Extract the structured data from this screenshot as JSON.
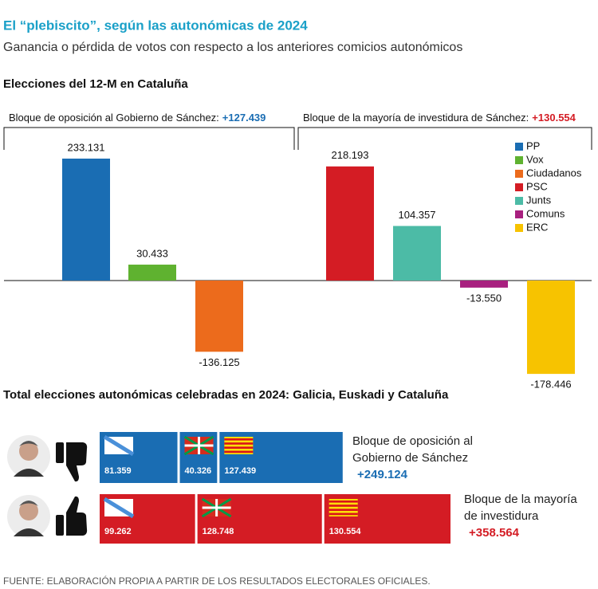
{
  "header": {
    "title": "El “plebiscito”, según las autonómicas de 2024",
    "subtitle": "Ganancia o pérdida de votos con respecto a los anteriores comicios autonómicos"
  },
  "chart_data": [
    {
      "type": "bar",
      "title": "Elecciones del 12-M en Cataluña",
      "blocs": [
        {
          "name": "Bloque de oposición al Gobierno de Sánchez:",
          "color": "#1a6db3",
          "total": {
            "value": 127439,
            "label": "+127.439"
          },
          "series": [
            {
              "name": "PP",
              "color": "#1a6db3",
              "values": [
                233131
              ],
              "value_labels": [
                "233.131"
              ]
            },
            {
              "name": "Vox",
              "color": "#5fb230",
              "values": [
                30433
              ],
              "value_labels": [
                "30.433"
              ]
            },
            {
              "name": "Ciudadanos",
              "color": "#ec6b1c",
              "values": [
                -136125
              ],
              "value_labels": [
                "-136.125"
              ]
            }
          ]
        },
        {
          "name": "Bloque de la mayoría de investidura de Sánchez:",
          "color": "#d41c24",
          "total": {
            "value": 130554,
            "label": "+130.554"
          },
          "series": [
            {
              "name": "PSC",
              "color": "#d41c24",
              "values": [
                218193
              ],
              "value_labels": [
                "218.193"
              ]
            },
            {
              "name": "Junts",
              "color": "#4cbba6",
              "values": [
                104357
              ],
              "value_labels": [
                "104.357"
              ]
            },
            {
              "name": "Comuns",
              "color": "#a8207f",
              "values": [
                -13550
              ],
              "value_labels": [
                "-13.550"
              ]
            },
            {
              "name": "ERC",
              "color": "#f7c300",
              "values": [
                -178446
              ],
              "value_labels": [
                "-178.446"
              ]
            }
          ]
        }
      ]
    },
    {
      "type": "stacked-bar",
      "title": "Total elecciones autonómicas celebradas en 2024: Galicia, Euskadi y Cataluña",
      "rows": [
        {
          "label": "Bloque de oposición al Gobierno de Sánchez",
          "color": "#1a6db3",
          "total": {
            "value": 249124,
            "label": "+249.124"
          },
          "values": [
            81359,
            40326,
            127439
          ],
          "value_labels": [
            "81.359",
            "40.326",
            "127.439"
          ]
        },
        {
          "label": "Bloque de la mayoría de investidura",
          "color": "#d41c24",
          "total": {
            "value": 358564,
            "label": "+358.564"
          },
          "values": [
            99262,
            128748,
            130554
          ],
          "value_labels": [
            "99.262",
            "128.748",
            "130.554"
          ]
        }
      ]
    }
  ],
  "source": "FUENTE: ELABORACIÓN PROPIA A PARTIR DE LOS RESULTADOS ELECTORALES OFICIALES."
}
